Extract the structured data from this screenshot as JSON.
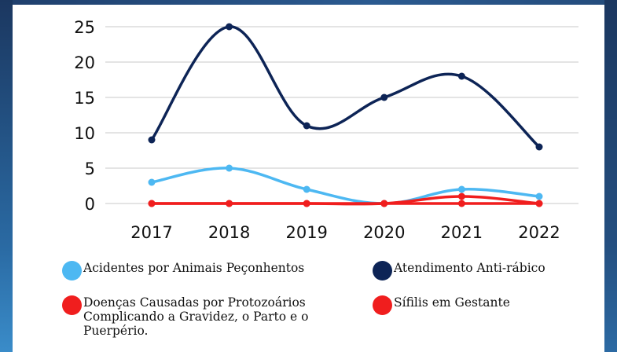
{
  "chart_data": {
    "type": "line",
    "categories": [
      "2017",
      "2018",
      "2019",
      "2020",
      "2021",
      "2022"
    ],
    "ylim": [
      0,
      25
    ],
    "yticks": [
      0,
      5,
      10,
      15,
      20,
      25
    ],
    "grid": true,
    "legend_position": "bottom",
    "series": [
      {
        "name": "Acidentes por Animais Peçonhentos",
        "color": "#4db8f2",
        "values": [
          3,
          5,
          2,
          0,
          2,
          1
        ]
      },
      {
        "name": "Atendimento Anti-rábico",
        "color": "#0d2456",
        "values": [
          9,
          25,
          11,
          15,
          18,
          8
        ]
      },
      {
        "name": "Doenças Causadas por Protozoários Complicando a Gravidez, o Parto e o Puerpério.",
        "color": "#f01e1e",
        "values": [
          0,
          0,
          0,
          0,
          0,
          0
        ]
      },
      {
        "name": "Sífilis em Gestante",
        "color": "#f01e1e",
        "values": [
          0,
          0,
          0,
          0,
          1,
          0
        ]
      }
    ]
  },
  "legend": [
    {
      "label": "Acidentes por Animais Peçonhentos",
      "color": "#4db8f2"
    },
    {
      "label": "Atendimento Anti-rábico",
      "color": "#0d2456"
    },
    {
      "label": "Doenças Causadas por Protozoários Complicando a Gravidez, o Parto e o Puerpério.",
      "color": "#f01e1e"
    },
    {
      "label": "Sífilis em Gestante",
      "color": "#f01e1e"
    }
  ]
}
